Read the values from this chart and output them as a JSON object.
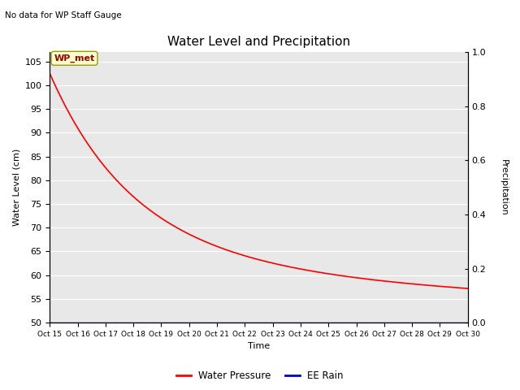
{
  "title": "Water Level and Precipitation",
  "subtitle": "No data for WP Staff Gauge",
  "xlabel": "Time",
  "ylabel_left": "Water Level (cm)",
  "ylabel_right": "Precipitation",
  "legend_label_water": "Water Pressure",
  "legend_label_rain": "EE Rain",
  "annotation": "WP_met",
  "ylim_left": [
    50,
    107
  ],
  "ylim_right": [
    0.0,
    1.0
  ],
  "yticks_left": [
    50,
    55,
    60,
    65,
    70,
    75,
    80,
    85,
    90,
    95,
    100,
    105
  ],
  "yticks_right": [
    0.0,
    0.2,
    0.4,
    0.6,
    0.8,
    1.0
  ],
  "xtick_labels": [
    "Oct 15",
    "Oct 16",
    "Oct 17",
    "Oct 18",
    "Oct 19",
    "Oct 20",
    "Oct 21",
    "Oct 22",
    "Oct 23",
    "Oct 24",
    "Oct 25",
    "Oct 26",
    "Oct 27",
    "Oct 28",
    "Oct 29",
    "Oct 30"
  ],
  "background_color": "#e8e8e8",
  "water_color": "#ff0000",
  "rain_color": "#0000cc",
  "annotation_bg": "#ffffcc",
  "annotation_border": "#999900",
  "annotation_text_color": "#990000",
  "fig_width": 6.4,
  "fig_height": 4.8,
  "dpi": 100
}
